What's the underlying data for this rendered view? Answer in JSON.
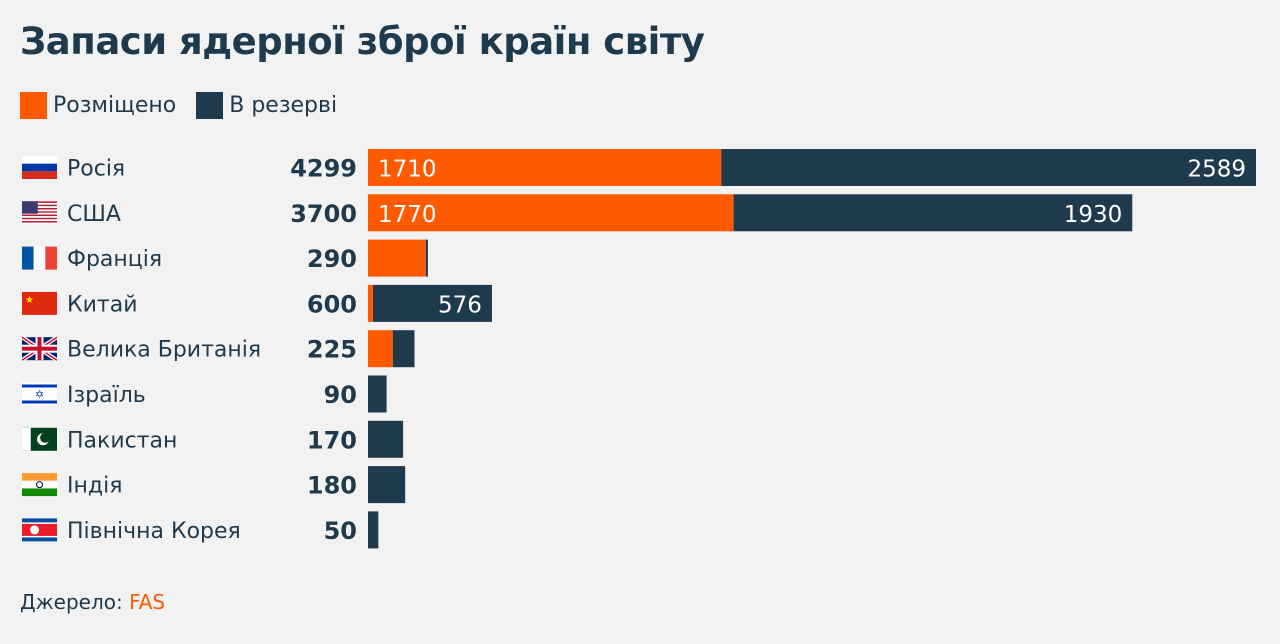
{
  "colors": {
    "deployed": "#ff5a00",
    "reserve": "#1f3a4d",
    "text": "#1f3a4d",
    "background": "#f2f2f2"
  },
  "chart_data": {
    "type": "bar",
    "orientation": "horizontal",
    "stacked": true,
    "title": "Запаси ядерної зброї країн світу",
    "legend_position": "top-left",
    "grid": false,
    "xlim": [
      0,
      4299
    ],
    "categories": [
      "Росія",
      "США",
      "Франція",
      "Китай",
      "Велика Британія",
      "Ізраїль",
      "Пакистан",
      "Індія",
      "Північна Корея"
    ],
    "totals": [
      "4299",
      "3700",
      "290",
      "600",
      "225",
      "90",
      "170",
      "180",
      "50"
    ],
    "flags": [
      "russia-flag",
      "usa-flag",
      "france-flag",
      "china-flag",
      "uk-flag",
      "israel-flag",
      "pakistan-flag",
      "india-flag",
      "north-korea-flag"
    ],
    "series": [
      {
        "name": "Розміщено",
        "values": [
          1710,
          1770,
          280,
          24,
          120,
          0,
          0,
          0,
          0
        ],
        "labels": [
          "1710",
          "1770",
          "",
          "",
          "",
          "",
          "",
          "",
          ""
        ]
      },
      {
        "name": "В резерві",
        "values": [
          2589,
          1930,
          10,
          576,
          105,
          90,
          170,
          180,
          50
        ],
        "labels": [
          "2589",
          "1930",
          "",
          "576",
          "",
          "",
          "",
          "",
          ""
        ]
      }
    ]
  },
  "source": {
    "label": "Джерело:",
    "value": "FAS"
  }
}
